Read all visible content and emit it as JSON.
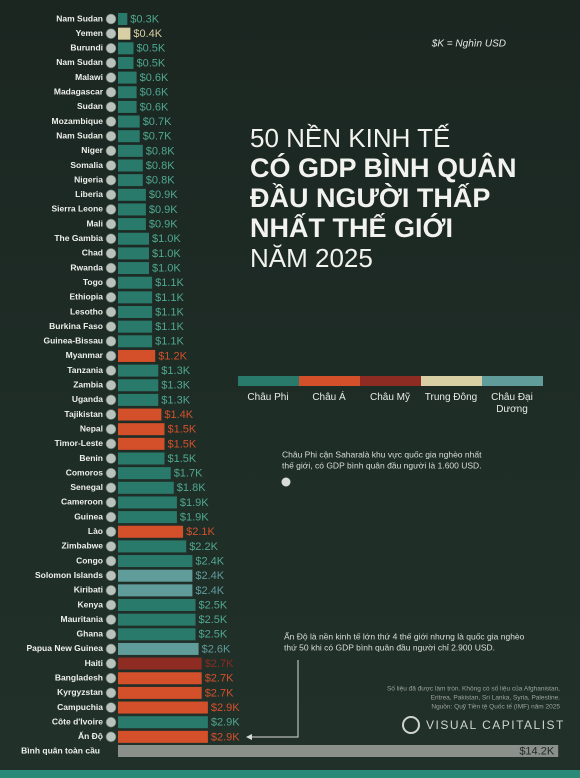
{
  "chart_data": {
    "type": "bar",
    "orientation": "horizontal",
    "unit_note": "$K = Nghìn USD",
    "title_lines": [
      "50 NỀN KINH TẾ",
      "CÓ GDP BÌNH QUÂN",
      "ĐẦU NGƯỜI THẤP",
      "NHẤT THẾ GIỚI",
      "NĂM 2025"
    ],
    "categories": [
      "Nam Sudan",
      "Yemen",
      "Burundi",
      "Nam Sudan",
      "Malawi",
      "Madagascar",
      "Sudan",
      "Mozambique",
      "Nam Sudan",
      "Niger",
      "Somalia",
      "Nigeria",
      "Liberia",
      "Sierra Leone",
      "Mali",
      "The Gambia",
      "Chad",
      "Rwanda",
      "Togo",
      "Ethiopia",
      "Lesotho",
      "Burkina Faso",
      "Guinea-Bissau",
      "Myanmar",
      "Tanzania",
      "Zambia",
      "Uganda",
      "Tajikistan",
      "Nepal",
      "Timor-Leste",
      "Benin",
      "Comoros",
      "Senegal",
      "Cameroon",
      "Guinea",
      "Lào",
      "Zimbabwe",
      "Congo",
      "Solomon Islands",
      "Kiribati",
      "Kenya",
      "Mauritania",
      "Ghana",
      "Papua New Guinea",
      "Haiti",
      "Bangladesh",
      "Kyrgyzstan",
      "Campuchia",
      "Côte d'Ivoire",
      "Ấn Độ",
      "Bình quân toàn cầu"
    ],
    "values": [
      0.3,
      0.4,
      0.5,
      0.5,
      0.6,
      0.6,
      0.6,
      0.7,
      0.7,
      0.8,
      0.8,
      0.8,
      0.9,
      0.9,
      0.9,
      1.0,
      1.0,
      1.0,
      1.1,
      1.1,
      1.1,
      1.1,
      1.1,
      1.2,
      1.3,
      1.3,
      1.3,
      1.4,
      1.5,
      1.5,
      1.5,
      1.7,
      1.8,
      1.9,
      1.9,
      2.1,
      2.2,
      2.4,
      2.4,
      2.4,
      2.5,
      2.5,
      2.5,
      2.6,
      2.7,
      2.7,
      2.7,
      2.9,
      2.9,
      2.9,
      14.2
    ],
    "value_labels": [
      "$0.3K",
      "$0.4K",
      "$0.5K",
      "$0.5K",
      "$0.6K",
      "$0.6K",
      "$0.6K",
      "$0.7K",
      "$0.7K",
      "$0.8K",
      "$0.8K",
      "$0.8K",
      "$0.9K",
      "$0.9K",
      "$0.9K",
      "$1.0K",
      "$1.0K",
      "$1.0K",
      "$1.1K",
      "$1.1K",
      "$1.1K",
      "$1.1K",
      "$1.1K",
      "$1.2K",
      "$1.3K",
      "$1.3K",
      "$1.3K",
      "$1.4K",
      "$1.5K",
      "$1.5K",
      "$1.5K",
      "$1.7K",
      "$1.8K",
      "$1.9K",
      "$1.9K",
      "$2.1K",
      "$2.2K",
      "$2.4K",
      "$2.4K",
      "$2.4K",
      "$2.5K",
      "$2.5K",
      "$2.5K",
      "$2.6K",
      "$2.7K",
      "$2.7K",
      "$2.7K",
      "$2.9K",
      "$2.9K",
      "$2.9K",
      "$14.2K"
    ],
    "colors": [
      "#2a7a6c",
      "#d9cfa5",
      "#2a7a6c",
      "#2a7a6c",
      "#2a7a6c",
      "#2a7a6c",
      "#2a7a6c",
      "#2a7a6c",
      "#2a7a6c",
      "#2a7a6c",
      "#2a7a6c",
      "#2a7a6c",
      "#2a7a6c",
      "#2a7a6c",
      "#2a7a6c",
      "#2a7a6c",
      "#2a7a6c",
      "#2a7a6c",
      "#2a7a6c",
      "#2a7a6c",
      "#2a7a6c",
      "#2a7a6c",
      "#2a7a6c",
      "#d4502a",
      "#2a7a6c",
      "#2a7a6c",
      "#2a7a6c",
      "#d4502a",
      "#d4502a",
      "#d4502a",
      "#2a7a6c",
      "#2a7a6c",
      "#2a7a6c",
      "#2a7a6c",
      "#2a7a6c",
      "#d4502a",
      "#2a7a6c",
      "#2a7a6c",
      "#5f9c9a",
      "#5f9c9a",
      "#2a7a6c",
      "#2a7a6c",
      "#2a7a6c",
      "#5f9c9a",
      "#8e2b22",
      "#d4502a",
      "#d4502a",
      "#d4502a",
      "#2a7a6c",
      "#d4502a",
      "#8b908b"
    ],
    "legend": [
      {
        "name": "Châu Phi",
        "color": "#2a7a6c"
      },
      {
        "name": "Châu Á",
        "color": "#d4502a"
      },
      {
        "name": "Châu Mỹ",
        "color": "#8e2b22"
      },
      {
        "name": "Trung Đông",
        "color": "#d9cfa5"
      },
      {
        "name": "Châu Đại Dương",
        "color": "#5f9c9a"
      }
    ],
    "notes": {
      "africa": [
        "Châu Phi cận Saharalà khu vực quốc gia nghèo nhất",
        "thế giới, có GDP bình quân đầu người là 1.600 USD."
      ],
      "india": [
        "Ấn Độ là nền kinh tế lớn thứ 4 thế giới nhưng là quốc gia nghèo",
        "thứ 50 khi có GDP bình quân đầu người chỉ 2.900 USD."
      ],
      "source": [
        "Số liệu đã được làm tròn. Không có số liệu của Afghanistan,",
        "Eritrea, Pakistan, Sri Lanka, Syria, Palestine.",
        "Nguồn: Quỹ Tiền tệ Quốc tế (IMF) năm 2025"
      ]
    },
    "brand": "VISUAL CAPITALIST"
  }
}
